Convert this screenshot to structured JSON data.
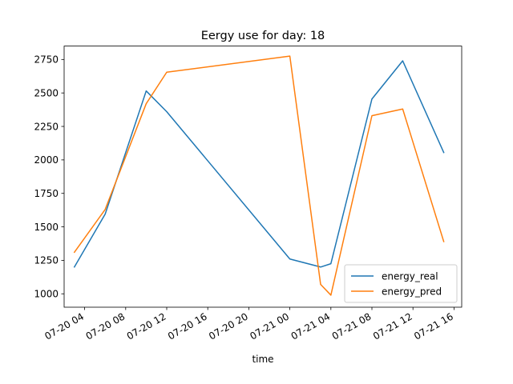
{
  "chart_data": {
    "type": "line",
    "title": "Eergy use for day: 18",
    "xlabel": "time",
    "ylabel": "",
    "x_ticks": [
      "07-20 04",
      "07-20 08",
      "07-20 12",
      "07-20 16",
      "07-20 20",
      "07-21 00",
      "07-21 04",
      "07-21 08",
      "07-21 12",
      "07-21 16"
    ],
    "y_ticks": [
      1000,
      1250,
      1500,
      1750,
      2000,
      2250,
      2500,
      2750
    ],
    "xlim": [
      "2020-07-20 02:00",
      "2020-07-21 16:45"
    ],
    "ylim": [
      900,
      2850
    ],
    "legend_position": "lower-right",
    "grid": false,
    "series": [
      {
        "name": "energy_real",
        "color": "#1f77b4",
        "points": [
          {
            "x": "2020-07-20 03:00",
            "y": 1200
          },
          {
            "x": "2020-07-20 06:00",
            "y": 1595
          },
          {
            "x": "2020-07-20 10:00",
            "y": 2515
          },
          {
            "x": "2020-07-20 12:00",
            "y": 2360
          },
          {
            "x": "2020-07-21 00:00",
            "y": 1260
          },
          {
            "x": "2020-07-21 03:00",
            "y": 1200
          },
          {
            "x": "2020-07-21 04:00",
            "y": 1225
          },
          {
            "x": "2020-07-21 08:00",
            "y": 2455
          },
          {
            "x": "2020-07-21 11:00",
            "y": 2740
          },
          {
            "x": "2020-07-21 15:00",
            "y": 2055
          }
        ]
      },
      {
        "name": "energy_pred",
        "color": "#ff7f0e",
        "points": [
          {
            "x": "2020-07-20 03:00",
            "y": 1310
          },
          {
            "x": "2020-07-20 06:00",
            "y": 1630
          },
          {
            "x": "2020-07-20 10:00",
            "y": 2420
          },
          {
            "x": "2020-07-20 12:00",
            "y": 2655
          },
          {
            "x": "2020-07-21 00:00",
            "y": 2775
          },
          {
            "x": "2020-07-21 03:00",
            "y": 1070
          },
          {
            "x": "2020-07-21 04:00",
            "y": 990
          },
          {
            "x": "2020-07-21 08:00",
            "y": 2330
          },
          {
            "x": "2020-07-21 11:00",
            "y": 2380
          },
          {
            "x": "2020-07-21 15:00",
            "y": 1390
          }
        ]
      }
    ]
  }
}
